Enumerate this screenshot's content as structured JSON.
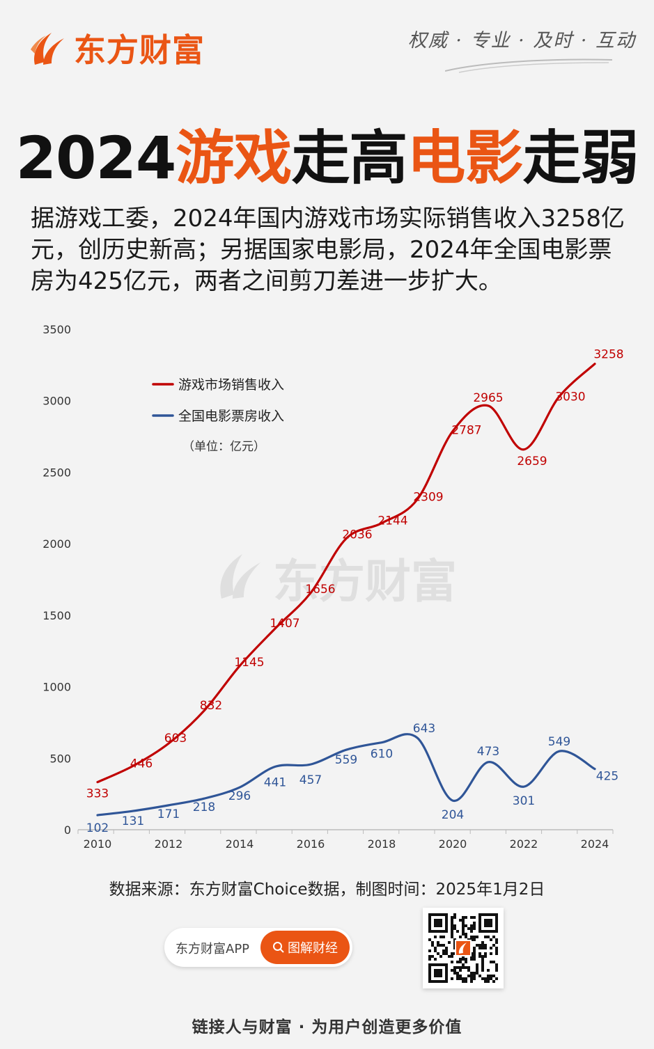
{
  "brand": {
    "name": "东方财富"
  },
  "slogan": "权威 · 专业 · 及时 · 互动",
  "title": {
    "part1": "2024",
    "part2": "游戏",
    "part3": "走高",
    "part4": "电影",
    "part5": "走弱"
  },
  "intro": "据游戏工委，2024年国内游戏市场实际销售收入3258亿元，创历史新高；另据国家电影局，2024年全国电影票房为425亿元，两者之间剪刀差进一步扩大。",
  "colors": {
    "accent": "#ea5514",
    "game": "#c00000",
    "movie": "#2f5597"
  },
  "chart_data": {
    "type": "line",
    "x": [
      2010,
      2011,
      2012,
      2013,
      2014,
      2015,
      2016,
      2017,
      2018,
      2019,
      2020,
      2021,
      2022,
      2023,
      2024
    ],
    "xticks": [
      "2010",
      "2012",
      "2014",
      "2016",
      "2018",
      "2020",
      "2022",
      "2024"
    ],
    "yticks": [
      "0",
      "500",
      "1000",
      "1500",
      "2000",
      "2500",
      "3000",
      "3500"
    ],
    "ylim": [
      0,
      3500
    ],
    "unit_note": "（单位：亿元）",
    "legend_position": "top-left",
    "series": [
      {
        "name": "游戏市场销售收入",
        "color": "#c00000",
        "values": [
          333,
          446,
          603,
          832,
          1145,
          1407,
          1656,
          2036,
          2144,
          2309,
          2787,
          2965,
          2659,
          3030,
          3258
        ]
      },
      {
        "name": "全国电影票房收入",
        "color": "#2f5597",
        "values": [
          102,
          131,
          171,
          218,
          296,
          441,
          457,
          559,
          610,
          643,
          204,
          473,
          301,
          549,
          425
        ]
      }
    ]
  },
  "source": "数据来源：东方财富Choice数据，制图时间：2025年1月2日",
  "app": {
    "name": "东方财富APP",
    "button": "图解财经"
  },
  "footer": "链接人与财富 · 为用户创造更多价值"
}
